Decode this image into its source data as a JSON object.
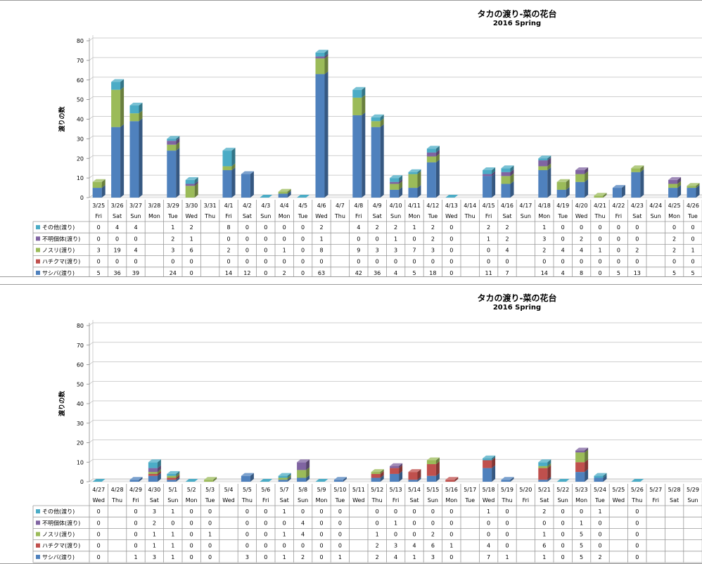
{
  "chart_data": [
    {
      "type": "bar",
      "stacked": true,
      "title": "タカの渡り-菜の花台",
      "subtitle": "2016 Spring",
      "ylabel": "渡りの数",
      "ylim": [
        0,
        80
      ],
      "yticks": [
        0,
        10,
        20,
        30,
        40,
        50,
        60,
        70,
        80
      ],
      "grid": true,
      "categories": [
        "3/25",
        "3/26",
        "3/27",
        "3/28",
        "3/29",
        "3/30",
        "3/31",
        "4/1",
        "4/2",
        "4/3",
        "4/4",
        "4/5",
        "4/6",
        "4/7",
        "4/8",
        "4/9",
        "4/10",
        "4/11",
        "4/12",
        "4/13",
        "4/14",
        "4/15",
        "4/16",
        "4/17",
        "4/18",
        "4/19",
        "4/20",
        "4/21",
        "4/22",
        "4/23",
        "4/24",
        "4/25",
        "4/26"
      ],
      "weekdays": [
        "Fri",
        "Sat",
        "Sun",
        "Mon",
        "Tue",
        "Wed",
        "Thu",
        "Fri",
        "Sat",
        "Sun",
        "Mon",
        "Tue",
        "Wed",
        "Thu",
        "Fri",
        "Sat",
        "Sun",
        "Mon",
        "Tue",
        "Wed",
        "Thu",
        "Fri",
        "Sat",
        "Sun",
        "Mon",
        "Tue",
        "Wed",
        "Thu",
        "Fri",
        "Sat",
        "Sun",
        "Mon",
        "Tue"
      ],
      "series": [
        {
          "name": "サシバ(渡り)",
          "color": "#4f81bd",
          "values": [
            5,
            36,
            39,
            null,
            24,
            0,
            null,
            14,
            12,
            0,
            2,
            0,
            63,
            null,
            42,
            36,
            4,
            5,
            18,
            0,
            null,
            11,
            7,
            null,
            14,
            4,
            8,
            0,
            5,
            13,
            null,
            5,
            5
          ]
        },
        {
          "name": "ハチクマ(渡り)",
          "color": "#c0504d",
          "values": [
            0,
            0,
            0,
            null,
            0,
            0,
            null,
            0,
            0,
            0,
            0,
            0,
            0,
            null,
            0,
            0,
            0,
            0,
            0,
            0,
            null,
            0,
            0,
            null,
            0,
            0,
            0,
            0,
            0,
            0,
            null,
            0,
            0
          ]
        },
        {
          "name": "ノスリ(渡り)",
          "color": "#9bbb59",
          "values": [
            3,
            19,
            4,
            null,
            3,
            6,
            null,
            2,
            0,
            0,
            1,
            0,
            8,
            null,
            9,
            3,
            3,
            7,
            3,
            0,
            null,
            0,
            4,
            null,
            2,
            4,
            4,
            1,
            0,
            2,
            null,
            2,
            1
          ]
        },
        {
          "name": "不明個体(渡り)",
          "color": "#8064a2",
          "values": [
            0,
            0,
            0,
            null,
            2,
            1,
            null,
            0,
            0,
            0,
            0,
            0,
            1,
            null,
            0,
            0,
            1,
            0,
            2,
            0,
            null,
            1,
            2,
            null,
            3,
            0,
            2,
            0,
            0,
            0,
            null,
            2,
            0
          ]
        },
        {
          "name": "その他(渡り)",
          "color": "#4bacc6",
          "values": [
            0,
            4,
            4,
            null,
            1,
            2,
            null,
            8,
            0,
            0,
            0,
            0,
            2,
            null,
            4,
            2,
            2,
            1,
            2,
            0,
            null,
            2,
            2,
            null,
            1,
            0,
            0,
            0,
            0,
            0,
            null,
            0,
            0
          ]
        }
      ]
    },
    {
      "type": "bar",
      "stacked": true,
      "title": "タカの渡り-菜の花台",
      "subtitle": "2016 Spring",
      "ylabel": "渡りの数",
      "ylim": [
        0,
        80
      ],
      "yticks": [
        0,
        10,
        20,
        30,
        40,
        50,
        60,
        70,
        80
      ],
      "grid": true,
      "categories": [
        "4/27",
        "4/28",
        "4/29",
        "4/30",
        "5/1",
        "5/2",
        "5/3",
        "5/4",
        "5/5",
        "5/6",
        "5/7",
        "5/8",
        "5/9",
        "5/10",
        "5/11",
        "5/12",
        "5/13",
        "5/14",
        "5/15",
        "5/16",
        "5/17",
        "5/18",
        "5/19",
        "5/20",
        "5/21",
        "5/22",
        "5/23",
        "5/24",
        "5/25",
        "5/26",
        "5/27",
        "5/28",
        "5/29"
      ],
      "weekdays": [
        "Wed",
        "Thu",
        "Fri",
        "Sat",
        "Sun",
        "Mon",
        "Tue",
        "Wed",
        "Thu",
        "Fri",
        "Sat",
        "Sun",
        "Mon",
        "Tue",
        "Wed",
        "Thu",
        "Fri",
        "Sat",
        "Sun",
        "Mon",
        "Tue",
        "Wed",
        "Thu",
        "Fri",
        "Sat",
        "Sun",
        "Mon",
        "Tue",
        "Wed",
        "Thu",
        "Fri",
        "Sat",
        "Sun"
      ],
      "series": [
        {
          "name": "サシバ(渡り)",
          "color": "#4f81bd",
          "values": [
            0,
            null,
            1,
            3,
            1,
            0,
            0,
            null,
            3,
            0,
            1,
            2,
            0,
            1,
            null,
            2,
            4,
            1,
            3,
            0,
            null,
            7,
            1,
            null,
            1,
            0,
            5,
            2,
            null,
            0,
            null,
            null,
            null
          ]
        },
        {
          "name": "ハチクマ(渡り)",
          "color": "#c0504d",
          "values": [
            0,
            null,
            0,
            1,
            1,
            0,
            0,
            null,
            0,
            0,
            0,
            0,
            0,
            0,
            null,
            2,
            3,
            4,
            6,
            1,
            null,
            4,
            0,
            null,
            6,
            0,
            5,
            0,
            null,
            0,
            null,
            null,
            null
          ]
        },
        {
          "name": "ノスリ(渡り)",
          "color": "#9bbb59",
          "values": [
            0,
            null,
            0,
            1,
            1,
            0,
            1,
            null,
            0,
            0,
            1,
            4,
            0,
            0,
            null,
            1,
            0,
            0,
            2,
            0,
            null,
            0,
            0,
            null,
            1,
            0,
            5,
            0,
            null,
            0,
            null,
            null,
            null
          ]
        },
        {
          "name": "不明個体(渡り)",
          "color": "#8064a2",
          "values": [
            0,
            null,
            0,
            2,
            0,
            0,
            0,
            null,
            0,
            0,
            0,
            4,
            0,
            0,
            null,
            0,
            1,
            0,
            0,
            0,
            null,
            0,
            0,
            null,
            0,
            0,
            1,
            0,
            null,
            0,
            null,
            null,
            null
          ]
        },
        {
          "name": "その他(渡り)",
          "color": "#4bacc6",
          "values": [
            0,
            null,
            0,
            3,
            1,
            0,
            0,
            null,
            0,
            0,
            1,
            0,
            0,
            0,
            null,
            0,
            0,
            0,
            0,
            0,
            null,
            1,
            0,
            null,
            2,
            0,
            0,
            1,
            null,
            0,
            null,
            null,
            null
          ]
        }
      ]
    }
  ]
}
